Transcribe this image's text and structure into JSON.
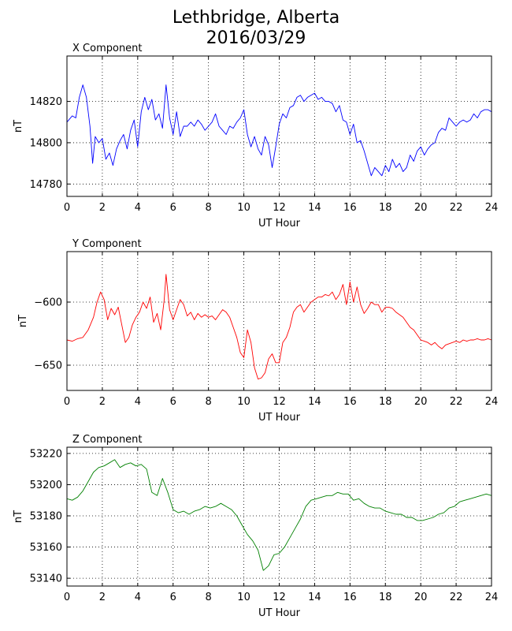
{
  "title": {
    "line1": "Lethbridge, Alberta",
    "line2": "2016/03/29"
  },
  "colors": {
    "x": "#0000ff",
    "y": "#ff0000",
    "z": "#008000"
  },
  "chart_data": [
    {
      "type": "line",
      "title": "X Component",
      "xlabel": "UT Hour",
      "ylabel": "nT",
      "xlim": [
        0,
        24
      ],
      "ylim": [
        14774,
        14842
      ],
      "xticks": [
        0,
        2,
        4,
        6,
        8,
        10,
        12,
        14,
        16,
        18,
        20,
        22,
        24
      ],
      "yticks": [
        14780,
        14800,
        14820
      ],
      "grid": true,
      "color": "#0000ff",
      "series": [
        {
          "x": [
            0,
            0.3,
            0.5,
            0.7,
            0.9,
            1.1,
            1.3,
            1.45,
            1.6,
            1.8,
            2.0,
            2.2,
            2.4,
            2.6,
            2.8,
            3.0,
            3.2,
            3.4,
            3.6,
            3.8,
            4.0,
            4.2,
            4.4,
            4.6,
            4.8,
            5.0,
            5.2,
            5.4,
            5.6,
            5.8,
            6.0,
            6.2,
            6.4,
            6.6,
            6.8,
            7.0,
            7.2,
            7.4,
            7.6,
            7.8,
            8.0,
            8.2,
            8.4,
            8.6,
            8.8,
            9.0,
            9.2,
            9.4,
            9.6,
            9.8,
            10.0,
            10.2,
            10.4,
            10.6,
            10.8,
            11.0,
            11.2,
            11.4,
            11.6,
            11.8,
            12.0,
            12.2,
            12.4,
            12.6,
            12.8,
            13.0,
            13.2,
            13.4,
            13.6,
            13.8,
            14.0,
            14.2,
            14.4,
            14.6,
            14.8,
            15.0,
            15.2,
            15.4,
            15.6,
            15.8,
            16.0,
            16.2,
            16.4,
            16.6,
            16.8,
            17.0,
            17.2,
            17.4,
            17.6,
            17.8,
            18.0,
            18.2,
            18.4,
            18.6,
            18.8,
            19.0,
            19.2,
            19.4,
            19.6,
            19.8,
            20.0,
            20.2,
            20.4,
            20.6,
            20.8,
            21.0,
            21.2,
            21.4,
            21.6,
            21.8,
            22.0,
            22.2,
            22.4,
            22.6,
            22.8,
            23.0,
            23.2,
            23.4,
            23.6,
            23.8,
            24.0
          ],
          "y": [
            14810,
            14813,
            14812,
            14822,
            14828,
            14822,
            14808,
            14790,
            14803,
            14800,
            14802,
            14792,
            14795,
            14789,
            14797,
            14801,
            14804,
            14797,
            14806,
            14811,
            14798,
            14815,
            14822,
            14816,
            14821,
            14811,
            14814,
            14807,
            14828,
            14812,
            14804,
            14815,
            14803,
            14808,
            14808,
            14810,
            14808,
            14811,
            14809,
            14806,
            14808,
            14810,
            14814,
            14808,
            14806,
            14804,
            14808,
            14807,
            14810,
            14812,
            14816,
            14804,
            14798,
            14803,
            14797,
            14794,
            14803,
            14799,
            14788,
            14798,
            14809,
            14814,
            14812,
            14817,
            14818,
            14822,
            14823,
            14820,
            14822,
            14823,
            14824,
            14821,
            14822,
            14820,
            14820,
            14819,
            14815,
            14818,
            14811,
            14810,
            14804,
            14809,
            14800,
            14801,
            14796,
            14790,
            14784,
            14788,
            14786,
            14784,
            14789,
            14786,
            14792,
            14788,
            14790,
            14786,
            14788,
            14794,
            14791,
            14796,
            14798,
            14794,
            14797,
            14799,
            14800,
            14805,
            14807,
            14806,
            14812,
            14810,
            14808,
            14810,
            14811,
            14810,
            14811,
            14814,
            14812,
            14815,
            14816,
            14816,
            14815
          ]
        }
      ]
    },
    {
      "type": "line",
      "title": "Y Component",
      "xlabel": "UT Hour",
      "ylabel": "nT",
      "xlim": [
        0,
        24
      ],
      "ylim": [
        -670,
        -560
      ],
      "xticks": [
        0,
        2,
        4,
        6,
        8,
        10,
        12,
        14,
        16,
        18,
        20,
        22,
        24
      ],
      "yticks": [
        -650,
        -600
      ],
      "grid": true,
      "color": "#ff0000",
      "series": [
        {
          "x": [
            0,
            0.3,
            0.6,
            0.9,
            1.2,
            1.5,
            1.7,
            1.9,
            2.1,
            2.3,
            2.5,
            2.7,
            2.9,
            3.1,
            3.3,
            3.5,
            3.7,
            3.9,
            4.1,
            4.3,
            4.5,
            4.7,
            4.9,
            5.1,
            5.3,
            5.5,
            5.6,
            5.8,
            6.0,
            6.2,
            6.4,
            6.6,
            6.8,
            7.0,
            7.2,
            7.4,
            7.6,
            7.8,
            8.0,
            8.2,
            8.4,
            8.6,
            8.8,
            9.0,
            9.2,
            9.4,
            9.6,
            9.8,
            10.0,
            10.2,
            10.4,
            10.6,
            10.8,
            11.0,
            11.2,
            11.4,
            11.6,
            11.8,
            12.0,
            12.2,
            12.4,
            12.6,
            12.8,
            13.0,
            13.2,
            13.4,
            13.6,
            13.8,
            14.0,
            14.2,
            14.4,
            14.6,
            14.8,
            15.0,
            15.2,
            15.4,
            15.6,
            15.8,
            16.0,
            16.2,
            16.4,
            16.6,
            16.8,
            17.0,
            17.2,
            17.4,
            17.6,
            17.8,
            18.0,
            18.2,
            18.4,
            18.6,
            18.8,
            19.0,
            19.2,
            19.4,
            19.6,
            19.8,
            20.0,
            20.2,
            20.4,
            20.6,
            20.8,
            21.0,
            21.2,
            21.4,
            21.6,
            21.8,
            22.0,
            22.2,
            22.4,
            22.6,
            22.8,
            23.0,
            23.2,
            23.4,
            23.6,
            23.8,
            24.0
          ],
          "y": [
            -630,
            -631,
            -629,
            -628,
            -622,
            -612,
            -600,
            -592,
            -598,
            -614,
            -605,
            -610,
            -604,
            -618,
            -632,
            -628,
            -618,
            -612,
            -608,
            -600,
            -605,
            -596,
            -616,
            -609,
            -622,
            -598,
            -578,
            -606,
            -614,
            -606,
            -598,
            -602,
            -611,
            -608,
            -614,
            -609,
            -612,
            -610,
            -612,
            -611,
            -614,
            -610,
            -606,
            -608,
            -612,
            -620,
            -628,
            -640,
            -644,
            -622,
            -632,
            -652,
            -661,
            -660,
            -656,
            -645,
            -641,
            -648,
            -648,
            -632,
            -628,
            -620,
            -608,
            -604,
            -602,
            -608,
            -604,
            -600,
            -598,
            -596,
            -596,
            -594,
            -595,
            -592,
            -598,
            -594,
            -586,
            -602,
            -584,
            -600,
            -588,
            -602,
            -609,
            -605,
            -600,
            -602,
            -602,
            -608,
            -604,
            -604,
            -605,
            -608,
            -610,
            -612,
            -616,
            -620,
            -622,
            -626,
            -630,
            -631,
            -632,
            -634,
            -632,
            -635,
            -637,
            -634,
            -633,
            -632,
            -631,
            -632,
            -630,
            -631,
            -630,
            -630,
            -629,
            -630,
            -630,
            -629,
            -630
          ]
        }
      ]
    },
    {
      "type": "line",
      "title": "Z Component",
      "xlabel": "UT Hour",
      "ylabel": "nT",
      "xlim": [
        0,
        24
      ],
      "ylim": [
        53135,
        53224
      ],
      "xticks": [
        0,
        2,
        4,
        6,
        8,
        10,
        12,
        14,
        16,
        18,
        20,
        22,
        24
      ],
      "yticks": [
        53140,
        53160,
        53180,
        53200,
        53220
      ],
      "grid": true,
      "color": "#008000",
      "series": [
        {
          "x": [
            0,
            0.3,
            0.6,
            0.9,
            1.2,
            1.5,
            1.8,
            2.1,
            2.4,
            2.7,
            3.0,
            3.3,
            3.6,
            3.9,
            4.2,
            4.5,
            4.8,
            5.1,
            5.4,
            5.7,
            6.0,
            6.3,
            6.6,
            6.9,
            7.2,
            7.5,
            7.8,
            8.1,
            8.4,
            8.7,
            9.0,
            9.3,
            9.6,
            9.9,
            10.2,
            10.5,
            10.8,
            11.1,
            11.4,
            11.7,
            12.0,
            12.3,
            12.6,
            12.9,
            13.2,
            13.5,
            13.8,
            14.1,
            14.4,
            14.7,
            15.0,
            15.3,
            15.6,
            15.9,
            16.2,
            16.5,
            16.8,
            17.1,
            17.4,
            17.7,
            18.0,
            18.3,
            18.6,
            18.9,
            19.2,
            19.5,
            19.8,
            20.1,
            20.4,
            20.7,
            21.0,
            21.3,
            21.6,
            21.9,
            22.2,
            22.5,
            22.8,
            23.1,
            23.4,
            23.7,
            24.0
          ],
          "y": [
            53191,
            53190,
            53192,
            53196,
            53202,
            53208,
            53211,
            53212,
            53214,
            53216,
            53211,
            53213,
            53214,
            53212,
            53213,
            53210,
            53195,
            53193,
            53204,
            53195,
            53184,
            53182,
            53183,
            53181,
            53183,
            53184,
            53186,
            53185,
            53186,
            53188,
            53186,
            53184,
            53180,
            53174,
            53168,
            53164,
            53158,
            53145,
            53148,
            53155,
            53156,
            53160,
            53166,
            53172,
            53178,
            53186,
            53190,
            53191,
            53192,
            53193,
            53193,
            53195,
            53194,
            53194,
            53190,
            53191,
            53188,
            53186,
            53185,
            53185,
            53183,
            53182,
            53181,
            53181,
            53179,
            53179,
            53177,
            53177,
            53178,
            53179,
            53181,
            53182,
            53185,
            53186,
            53189,
            53190,
            53191,
            53192,
            53193,
            53194,
            53193
          ]
        }
      ]
    }
  ]
}
